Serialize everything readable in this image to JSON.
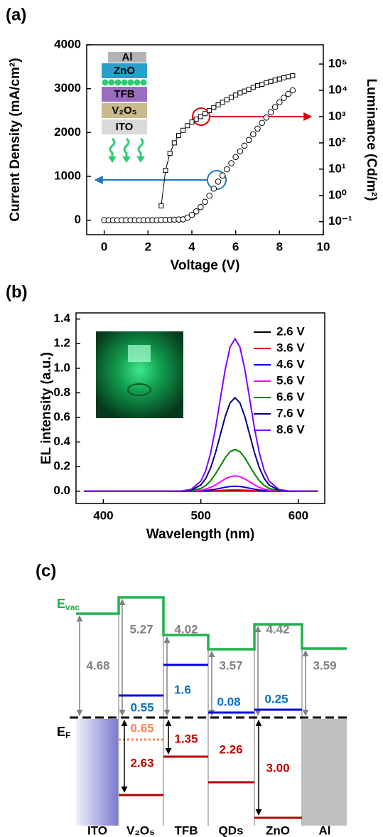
{
  "panel_labels": [
    "(a)",
    "(b)",
    "(c)"
  ],
  "chart_data": [
    {
      "type": "line",
      "xlabel": "Voltage (V)",
      "ylabel": "Current Density (mA/cm²)",
      "y2label": "Luminance (Cd/m²)",
      "xlim": [
        -0.8,
        10
      ],
      "xticks": [
        0,
        2,
        4,
        6,
        8,
        10
      ],
      "ylim": [
        -330,
        4000
      ],
      "yticks": [
        0,
        1000,
        2000,
        3000,
        4000
      ],
      "y2lim": [
        0.032,
        540000
      ],
      "y2log": true,
      "y2ticks": [
        {
          "value": 0.1,
          "label": "10⁻¹"
        },
        {
          "value": 1,
          "label": "10⁰"
        },
        {
          "value": 10,
          "label": "10¹"
        },
        {
          "value": 100,
          "label": "10²"
        },
        {
          "value": 1000,
          "label": "10³"
        },
        {
          "value": 10000,
          "label": "10⁴"
        },
        {
          "value": 100000,
          "label": "10⁵"
        }
      ],
      "inset_layers": [
        "Al",
        "ZnO",
        "TFB",
        "V₂O₅",
        "ITO"
      ],
      "series": [
        {
          "color": "#000000",
          "marker": "circle",
          "line": false,
          "axis": "y",
          "x": [
            0,
            0.2,
            0.4,
            0.6,
            0.8,
            1,
            1.2,
            1.4,
            1.6,
            1.8,
            2,
            2.2,
            2.4,
            2.6,
            2.8,
            3,
            3.2,
            3.4,
            3.6,
            3.8,
            4,
            4.2,
            4.4,
            4.6,
            4.8,
            5,
            5.2,
            5.4,
            5.6,
            5.8,
            6,
            6.2,
            6.4,
            6.6,
            6.8,
            7,
            7.2,
            7.4,
            7.6,
            7.8,
            8,
            8.2,
            8.4,
            8.6
          ],
          "values": [
            0,
            0,
            0,
            0,
            0,
            0,
            0,
            0,
            0,
            0,
            0,
            0,
            0,
            5,
            8,
            10,
            12,
            15,
            20,
            60,
            120,
            200,
            300,
            420,
            560,
            720,
            880,
            1020,
            1160,
            1300,
            1440,
            1570,
            1700,
            1830,
            1960,
            2090,
            2220,
            2340,
            2460,
            2580,
            2690,
            2790,
            2880,
            2960
          ]
        },
        {
          "color": "#000000",
          "marker": "square",
          "line": true,
          "axis": "y2",
          "x": [
            2.6,
            2.8,
            3,
            3.2,
            3.4,
            3.6,
            3.8,
            4,
            4.2,
            4.4,
            4.6,
            4.8,
            5,
            5.2,
            5.4,
            5.6,
            5.8,
            6,
            6.2,
            6.4,
            6.6,
            6.8,
            7,
            7.2,
            7.4,
            7.6,
            7.8,
            8,
            8.2,
            8.4,
            8.6
          ],
          "values": [
            0.4,
            9,
            40,
            100,
            190,
            300,
            450,
            620,
            800,
            1000,
            1300,
            1700,
            2200,
            2800,
            3500,
            4400,
            5400,
            6600,
            7900,
            9300,
            11000,
            13000,
            15000,
            17000,
            19500,
            22000,
            24500,
            27000,
            30000,
            33000,
            36000
          ]
        }
      ]
    },
    {
      "type": "line",
      "xlabel": "Wavelength (nm)",
      "ylabel": "EL intensity (a.u.)",
      "xlim": [
        372,
        627
      ],
      "xticks": [
        400,
        500,
        600
      ],
      "ylim": [
        -0.1,
        1.45
      ],
      "yticks": [
        {
          "value": 0,
          "label": "0.0"
        },
        0.2,
        0.4,
        0.6,
        0.8,
        {
          "value": 1,
          "label": "1.0"
        },
        1.2,
        1.4
      ],
      "legend": "upper right",
      "x": [
        380,
        400,
        420,
        440,
        460,
        470,
        480,
        490,
        500,
        505,
        510,
        515,
        520,
        525,
        530,
        535,
        540,
        545,
        550,
        555,
        560,
        565,
        570,
        580,
        590,
        600,
        620
      ],
      "series": [
        {
          "name": "2.6 V",
          "color": "#000000",
          "values": [
            0,
            0,
            0,
            0,
            0,
            0,
            0,
            0,
            0,
            0,
            0,
            0.001,
            0.001,
            0.002,
            0.002,
            0.002,
            0.002,
            0.002,
            0.001,
            0.001,
            0,
            0,
            0,
            0,
            0,
            0,
            0
          ]
        },
        {
          "name": "3.6 V",
          "color": "#e00000",
          "values": [
            0,
            0,
            0,
            0,
            0,
            0,
            0,
            0,
            0.001,
            0.001,
            0.002,
            0.004,
            0.006,
            0.008,
            0.009,
            0.01,
            0.009,
            0.008,
            0.006,
            0.004,
            0.002,
            0.001,
            0.001,
            0,
            0,
            0,
            0
          ]
        },
        {
          "name": "4.6 V",
          "color": "#0000e0",
          "values": [
            0,
            0,
            0,
            0,
            0,
            0,
            0,
            0,
            0.003,
            0.005,
            0.01,
            0.016,
            0.024,
            0.032,
            0.038,
            0.04,
            0.038,
            0.032,
            0.024,
            0.016,
            0.01,
            0.005,
            0.003,
            0,
            0,
            0,
            0
          ]
        },
        {
          "name": "5.6 V",
          "color": "#ff00ff",
          "values": [
            0,
            0,
            0,
            0,
            0,
            0,
            0,
            0.001,
            0.008,
            0.017,
            0.031,
            0.051,
            0.076,
            0.1,
            0.118,
            0.125,
            0.118,
            0.1,
            0.076,
            0.051,
            0.031,
            0.017,
            0.008,
            0.001,
            0,
            0,
            0
          ]
        },
        {
          "name": "6.6 V",
          "color": "#008000",
          "values": [
            0,
            0,
            0,
            0,
            0,
            0,
            0,
            0.004,
            0.022,
            0.046,
            0.085,
            0.14,
            0.206,
            0.272,
            0.322,
            0.34,
            0.322,
            0.272,
            0.206,
            0.14,
            0.085,
            0.046,
            0.022,
            0.004,
            0,
            0,
            0
          ]
        },
        {
          "name": "7.6 V",
          "color": "#000080",
          "values": [
            0,
            0,
            0,
            0,
            0,
            0,
            0.001,
            0.008,
            0.05,
            0.103,
            0.189,
            0.312,
            0.461,
            0.609,
            0.719,
            0.76,
            0.719,
            0.609,
            0.461,
            0.312,
            0.189,
            0.103,
            0.05,
            0.008,
            0.001,
            0,
            0
          ]
        },
        {
          "name": "8.6 V",
          "color": "#8000ff",
          "values": [
            0,
            0,
            0,
            0,
            0,
            0,
            0.001,
            0.014,
            0.082,
            0.167,
            0.309,
            0.51,
            0.753,
            0.993,
            1.173,
            1.24,
            1.173,
            0.993,
            0.753,
            0.51,
            0.309,
            0.167,
            0.082,
            0.014,
            0.001,
            0,
            0
          ]
        }
      ]
    }
  ],
  "energy_diagram": {
    "vacuum_level": {
      "symbol": "E",
      "subscript": "vac"
    },
    "fermi_level": {
      "symbol": "E",
      "subscript": "F"
    },
    "layers": [
      {
        "name": "ITO",
        "vac_gap": "4.68"
      },
      {
        "name": "V₂O₅",
        "vac_gap": "5.27",
        "lumo": "0.55",
        "homo_upper": "0.65",
        "homo": "2.63"
      },
      {
        "name": "TFB",
        "vac_gap": "4.02",
        "lumo": "1.6",
        "homo": "1.35"
      },
      {
        "name": "QDs",
        "vac_gap": "3.57",
        "lumo": "0.08",
        "homo": "2.26"
      },
      {
        "name": "ZnO",
        "vac_gap": "4.42",
        "lumo": "0.25",
        "homo": "3.00"
      },
      {
        "name": "Al",
        "vac_gap": "3.59"
      }
    ]
  }
}
